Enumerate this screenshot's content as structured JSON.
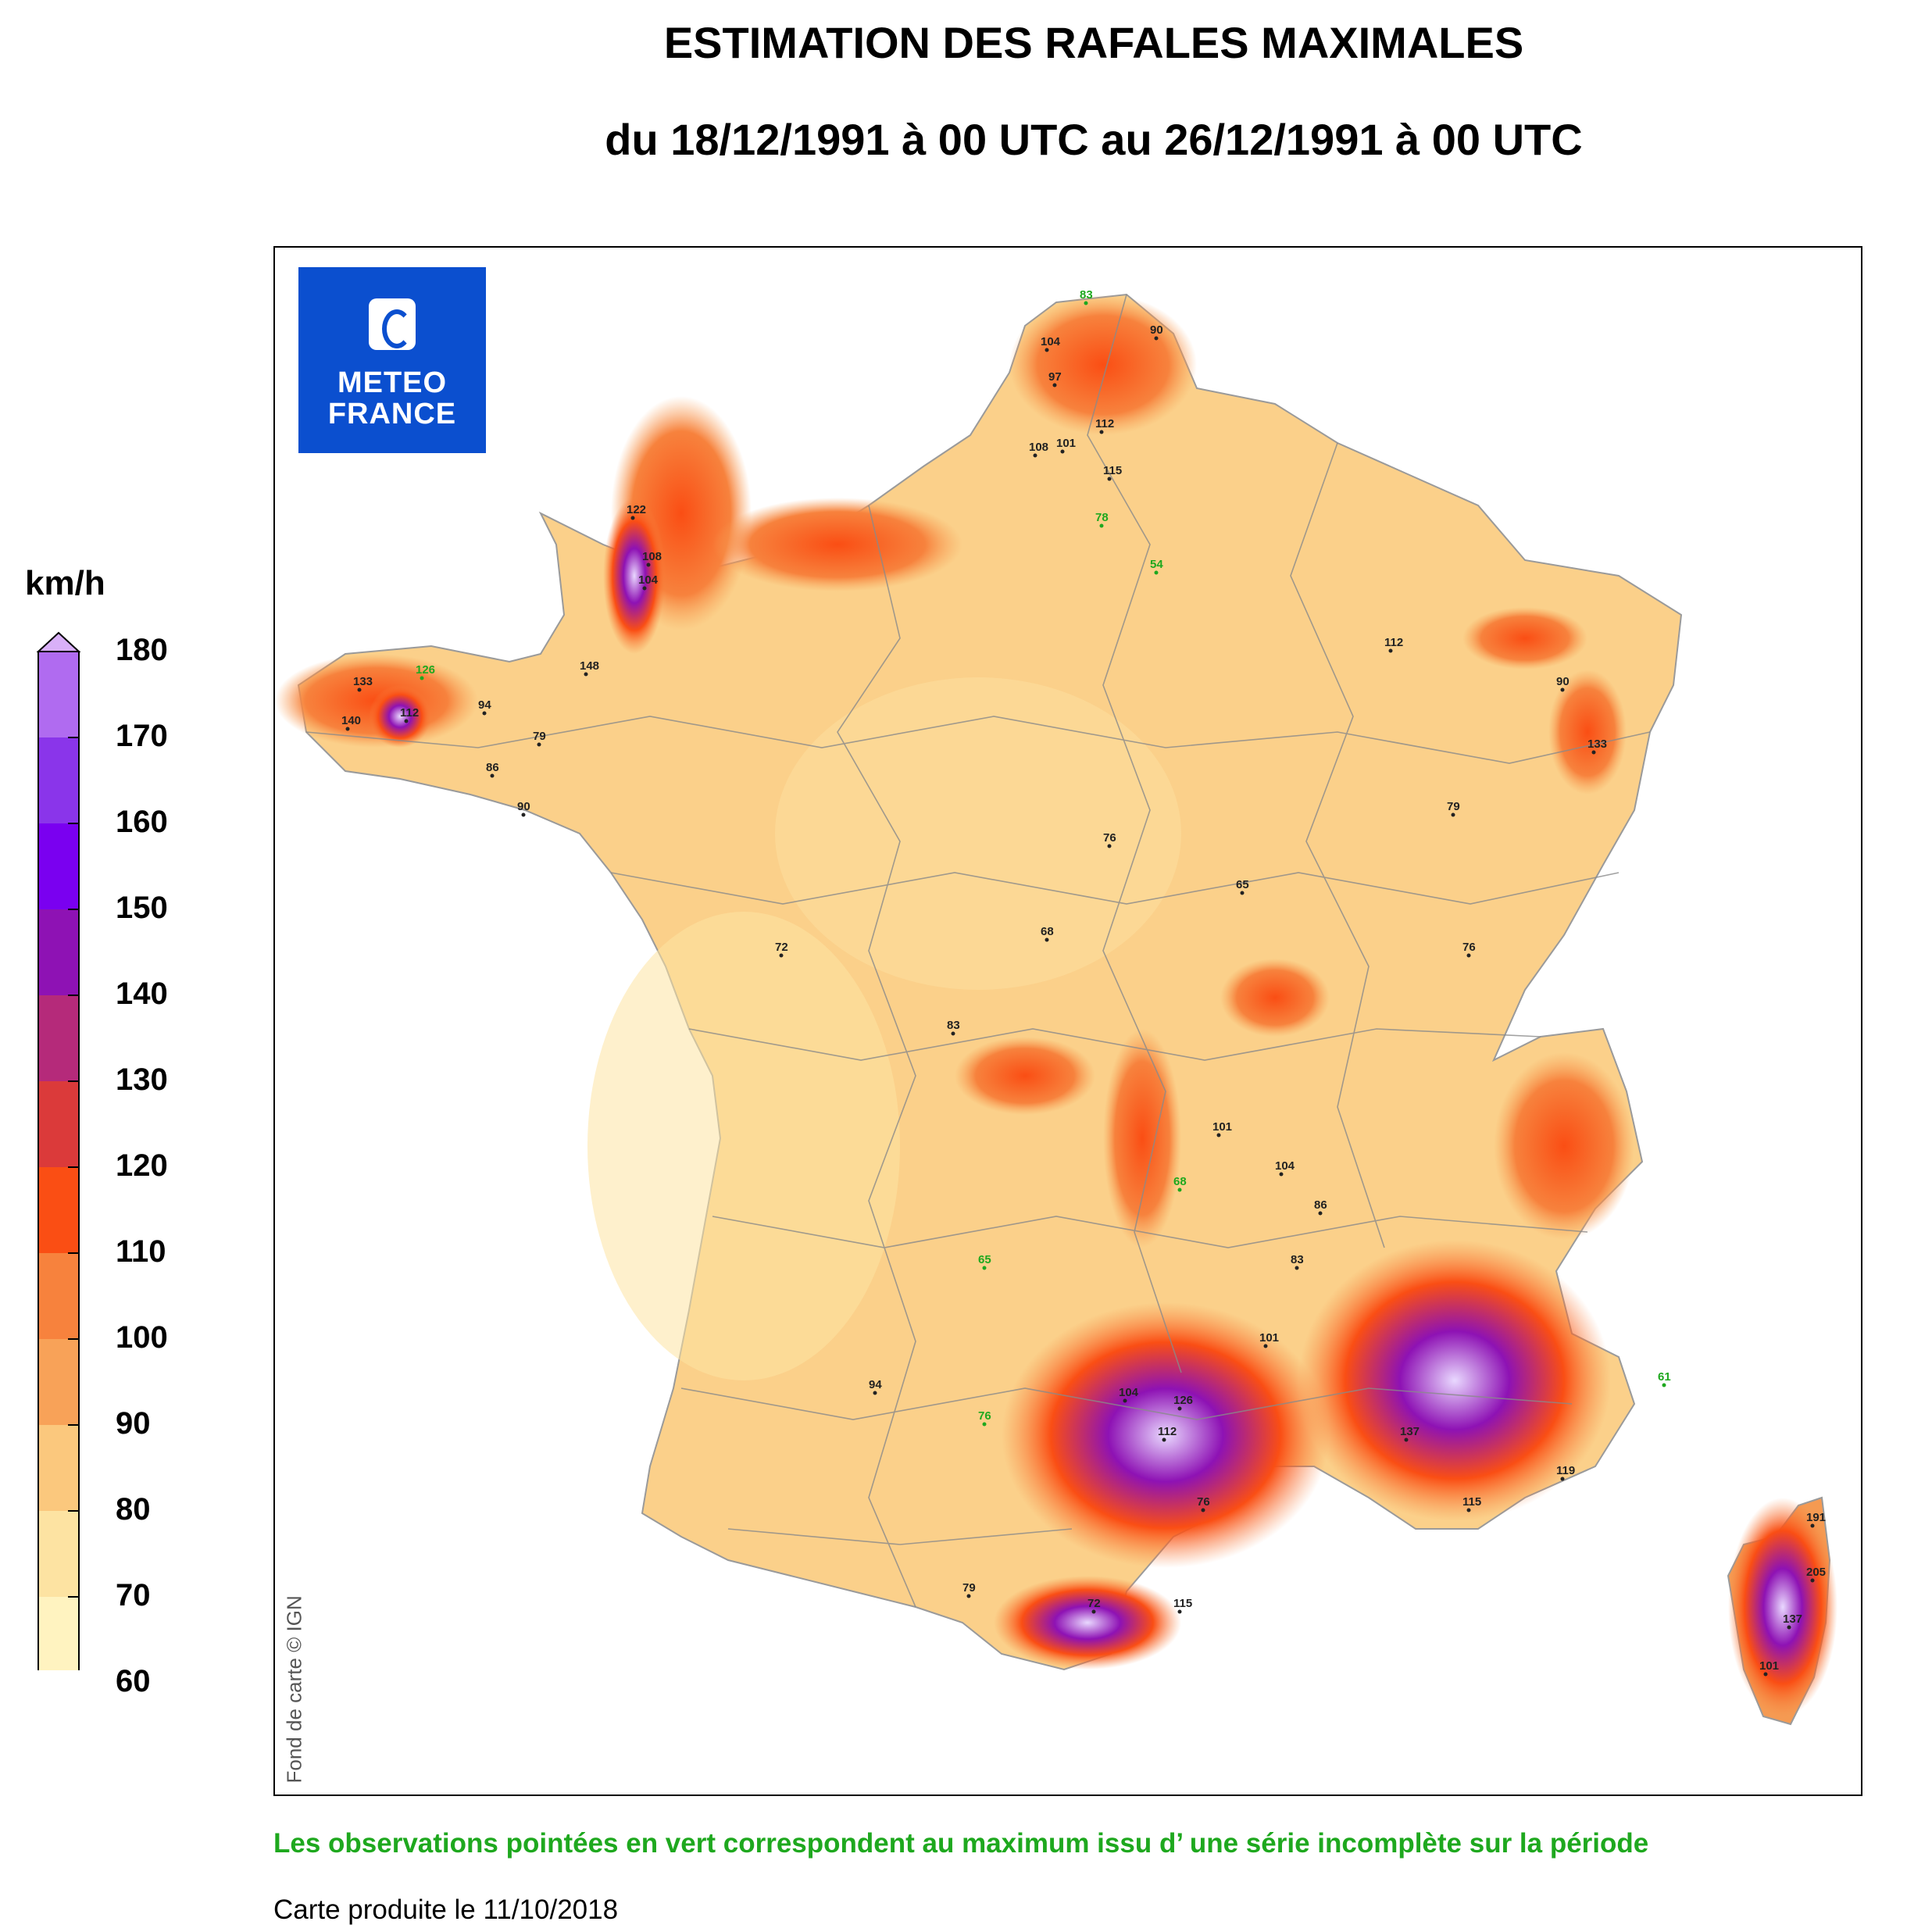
{
  "title": "ESTIMATION DES RAFALES MAXIMALES",
  "subtitle": "du 18/12/1991 à 00 UTC au 26/12/1991 à 00 UTC",
  "logo": {
    "line1": "METEO",
    "line2": "FRANCE"
  },
  "map_credit": "Fond de carte © IGN",
  "legend": {
    "unit": "km/h",
    "ticks": [
      "60",
      "70",
      "80",
      "90",
      "100",
      "110",
      "120",
      "130",
      "140",
      "150",
      "160",
      "170",
      "180"
    ],
    "colors": [
      "#fff3c0",
      "#fde3a2",
      "#fbc87d",
      "#f8a258",
      "#f7823d",
      "#fa4e14",
      "#db3a3a",
      "#b52a7a",
      "#8e12b4",
      "#7a00f0",
      "#8a35ea",
      "#b06bf0",
      "#d9b0f8"
    ]
  },
  "stations": [
    {
      "v": "83",
      "g": true
    },
    {
      "v": "104"
    },
    {
      "v": "90"
    },
    {
      "v": "97"
    },
    {
      "v": "112"
    },
    {
      "v": "115"
    },
    {
      "v": "108"
    },
    {
      "v": "101"
    },
    {
      "v": "122"
    },
    {
      "v": "108"
    },
    {
      "v": "104"
    },
    {
      "v": "133"
    },
    {
      "v": "126",
      "g": true
    },
    {
      "v": "148"
    },
    {
      "v": "112"
    },
    {
      "v": "140"
    },
    {
      "v": "79"
    },
    {
      "v": "86"
    },
    {
      "v": "94"
    },
    {
      "v": "90"
    },
    {
      "v": "72"
    },
    {
      "v": "83"
    },
    {
      "v": "68"
    },
    {
      "v": "76"
    },
    {
      "v": "65"
    },
    {
      "v": "101"
    },
    {
      "v": "104"
    },
    {
      "v": "112"
    },
    {
      "v": "133"
    },
    {
      "v": "90"
    },
    {
      "v": "79"
    },
    {
      "v": "76"
    },
    {
      "v": "86"
    },
    {
      "v": "101"
    },
    {
      "v": "104"
    },
    {
      "v": "112"
    },
    {
      "v": "137"
    },
    {
      "v": "115"
    },
    {
      "v": "119"
    },
    {
      "v": "126"
    },
    {
      "v": "94"
    },
    {
      "v": "83"
    },
    {
      "v": "76"
    },
    {
      "v": "72"
    },
    {
      "v": "79"
    },
    {
      "v": "115"
    },
    {
      "v": "191"
    },
    {
      "v": "205"
    },
    {
      "v": "137"
    },
    {
      "v": "101"
    },
    {
      "v": "78",
      "g": true
    },
    {
      "v": "54",
      "g": true
    },
    {
      "v": "65",
      "g": true
    },
    {
      "v": "68",
      "g": true
    },
    {
      "v": "76",
      "g": true
    },
    {
      "v": "61",
      "g": true
    }
  ],
  "note": "Les observations pointées en vert correspondent au maximum issu d’ une série incomplète sur la période",
  "produced": "Carte produite le 11/10/2018"
}
